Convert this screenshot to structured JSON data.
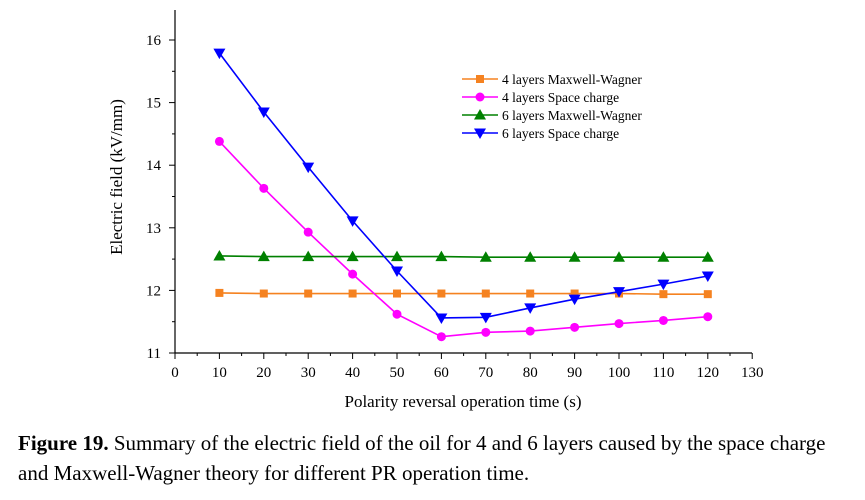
{
  "chart_data": {
    "type": "line",
    "xlabel": "Polarity reversal operation time (s)",
    "ylabel": "Electric field (kV/mm)",
    "xlim": [
      0,
      130
    ],
    "ylim": [
      11,
      16.5
    ],
    "xticks": [
      0,
      10,
      20,
      30,
      40,
      50,
      60,
      70,
      80,
      90,
      100,
      110,
      120,
      130
    ],
    "yticks": [
      11,
      12,
      13,
      14,
      15,
      16
    ],
    "x": [
      10,
      20,
      30,
      40,
      50,
      60,
      70,
      80,
      90,
      100,
      110,
      120
    ],
    "legend_position": "top-right",
    "series": [
      {
        "name": "4 layers Maxwell-Wagner",
        "color": "#f58220",
        "marker": "square",
        "values": [
          11.96,
          11.95,
          11.95,
          11.95,
          11.95,
          11.95,
          11.95,
          11.95,
          11.95,
          11.95,
          11.94,
          11.94
        ]
      },
      {
        "name": "4 layers Space charge",
        "color": "#ff00ff",
        "marker": "circle",
        "values": [
          14.38,
          13.63,
          12.93,
          12.26,
          11.62,
          11.26,
          11.33,
          11.35,
          11.41,
          11.47,
          11.52,
          11.58
        ]
      },
      {
        "name": "6 layers Maxwell-Wagner",
        "color": "#008000",
        "marker": "triangle-up",
        "values": [
          12.55,
          12.54,
          12.54,
          12.54,
          12.54,
          12.54,
          12.53,
          12.53,
          12.53,
          12.53,
          12.53,
          12.53
        ]
      },
      {
        "name": "6 layers Space charge",
        "color": "#0000ff",
        "marker": "triangle-down",
        "values": [
          15.79,
          14.85,
          13.97,
          13.11,
          12.31,
          11.56,
          11.57,
          11.72,
          11.86,
          11.98,
          12.1,
          12.23
        ]
      }
    ]
  },
  "caption": {
    "label": "Figure 19.",
    "text": " Summary of the electric field of the oil for 4 and 6 layers caused by the space charge and Maxwell-Wagner theory for different PR operation time."
  }
}
